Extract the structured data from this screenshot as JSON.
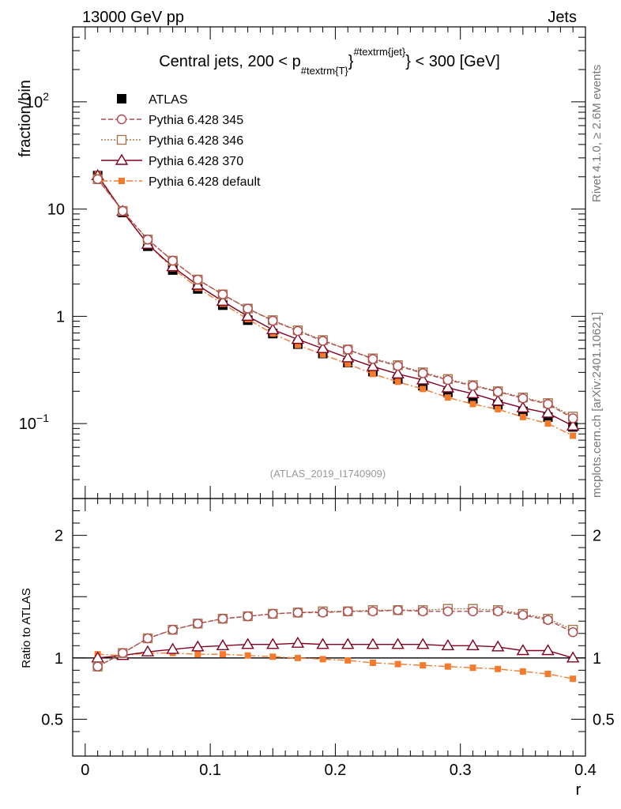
{
  "header": {
    "left": "13000 GeV pp",
    "right": "Jets"
  },
  "side_labels": {
    "top": "Rivet 4.1.0, ≥ 2.6M events",
    "bottom": "mcplots.cern.ch [arXiv:2401.10621]"
  },
  "reference": "(ATLAS_2019_I1740909)",
  "chart_data": [
    {
      "type": "scatter",
      "title": "Central jets, 200 < p_{#textrm{T}}^{#textrm{jet}} < 300 [GeV]",
      "title_parts": {
        "pre": "Central jets, 200 < p",
        "sub": "#textrm{T}",
        "sup": "#textrm{jet}",
        "post": " < 300 [GeV]"
      },
      "xlabel": "r",
      "ylabel": "fraction/bin",
      "yscale": "log",
      "xlim": [
        -0.01,
        0.4
      ],
      "ylim": [
        0.02,
        500
      ],
      "xticks": [
        0,
        0.1,
        0.2,
        0.3,
        0.4
      ],
      "xtick_labels": [
        "0",
        "0.1",
        "0.2",
        "0.3",
        "0.4"
      ],
      "yticks": [
        {
          "value": 0.1,
          "base": "10",
          "exp": "−1"
        },
        {
          "value": 1,
          "base": "1",
          "exp": ""
        },
        {
          "value": 10,
          "base": "10",
          "exp": ""
        },
        {
          "value": 100,
          "base": "10",
          "exp": "2"
        }
      ],
      "x": [
        0.01,
        0.03,
        0.05,
        0.07,
        0.09,
        0.11,
        0.13,
        0.15,
        0.17,
        0.19,
        0.21,
        0.23,
        0.25,
        0.27,
        0.29,
        0.31,
        0.33,
        0.35,
        0.37,
        0.39
      ],
      "legend_position": "top-left",
      "series": [
        {
          "name": "ATLAS",
          "color": "#000000",
          "marker": "filled-square",
          "line": "none",
          "values": [
            20.5,
            9.3,
            4.5,
            2.7,
            1.8,
            1.27,
            0.92,
            0.69,
            0.55,
            0.45,
            0.37,
            0.305,
            0.26,
            0.225,
            0.195,
            0.17,
            0.15,
            0.13,
            0.115,
            0.093
          ]
        },
        {
          "name": "Pythia 6.428 345",
          "color": "#b2474e",
          "marker": "open-circle",
          "line": "dashed",
          "values": [
            19.0,
            9.6,
            5.2,
            3.3,
            2.2,
            1.6,
            1.18,
            0.91,
            0.73,
            0.59,
            0.49,
            0.4,
            0.345,
            0.295,
            0.255,
            0.225,
            0.198,
            0.172,
            0.152,
            0.112
          ]
        },
        {
          "name": "Pythia 6.428 346",
          "color": "#a0784b",
          "marker": "open-square",
          "line": "dotted",
          "values": [
            19.0,
            9.6,
            5.2,
            3.3,
            2.2,
            1.6,
            1.18,
            0.92,
            0.74,
            0.6,
            0.49,
            0.405,
            0.35,
            0.3,
            0.26,
            0.228,
            0.2,
            0.175,
            0.155,
            0.116
          ]
        },
        {
          "name": "Pythia 6.428 370",
          "color": "#800020",
          "marker": "open-triangle",
          "line": "solid",
          "values": [
            20.5,
            9.5,
            4.7,
            2.9,
            1.95,
            1.38,
            1.0,
            0.75,
            0.61,
            0.5,
            0.41,
            0.34,
            0.29,
            0.255,
            0.215,
            0.19,
            0.162,
            0.14,
            0.125,
            0.095
          ]
        },
        {
          "name": "Pythia 6.428 default",
          "color": "#f47a2e",
          "marker": "filled-small-square",
          "line": "dashdot",
          "values": [
            21.0,
            9.4,
            4.7,
            2.8,
            1.84,
            1.31,
            0.94,
            0.69,
            0.54,
            0.44,
            0.36,
            0.29,
            0.245,
            0.21,
            0.175,
            0.152,
            0.136,
            0.115,
            0.1,
            0.077
          ]
        }
      ]
    },
    {
      "type": "scatter",
      "title": "",
      "xlabel": "r",
      "ylabel": "Ratio to ATLAS",
      "xlim": [
        -0.01,
        0.4
      ],
      "ylim": [
        0.2,
        2.3
      ],
      "yticks": [
        0.5,
        1,
        2
      ],
      "ytick_labels": [
        "0.5",
        "1",
        "2"
      ],
      "reference_line": 1,
      "x": [
        0.01,
        0.03,
        0.05,
        0.07,
        0.09,
        0.11,
        0.13,
        0.15,
        0.17,
        0.19,
        0.21,
        0.23,
        0.25,
        0.27,
        0.29,
        0.31,
        0.33,
        0.35,
        0.37,
        0.39
      ],
      "series": [
        {
          "name": "Pythia 6.428 345",
          "color": "#b2474e",
          "marker": "open-circle",
          "line": "dashed",
          "values": [
            0.93,
            1.04,
            1.16,
            1.23,
            1.28,
            1.32,
            1.34,
            1.36,
            1.37,
            1.37,
            1.38,
            1.38,
            1.39,
            1.38,
            1.38,
            1.38,
            1.38,
            1.35,
            1.31,
            1.21
          ]
        },
        {
          "name": "Pythia 6.428 346",
          "color": "#a0784b",
          "marker": "open-square",
          "line": "dotted",
          "values": [
            0.93,
            1.04,
            1.16,
            1.23,
            1.28,
            1.32,
            1.34,
            1.36,
            1.37,
            1.38,
            1.38,
            1.39,
            1.39,
            1.39,
            1.4,
            1.4,
            1.39,
            1.36,
            1.32,
            1.23
          ]
        },
        {
          "name": "Pythia 6.428 370",
          "color": "#800020",
          "marker": "open-triangle",
          "line": "solid",
          "values": [
            1.0,
            1.02,
            1.05,
            1.07,
            1.09,
            1.1,
            1.11,
            1.11,
            1.12,
            1.11,
            1.11,
            1.11,
            1.11,
            1.11,
            1.1,
            1.1,
            1.09,
            1.06,
            1.06,
            1.0
          ]
        },
        {
          "name": "Pythia 6.428 default",
          "color": "#f47a2e",
          "marker": "filled-small-square",
          "line": "dashdot",
          "values": [
            1.03,
            1.02,
            1.04,
            1.04,
            1.03,
            1.03,
            1.02,
            1.01,
            1.0,
            0.99,
            0.98,
            0.96,
            0.95,
            0.94,
            0.93,
            0.92,
            0.91,
            0.89,
            0.87,
            0.83
          ]
        }
      ]
    }
  ]
}
